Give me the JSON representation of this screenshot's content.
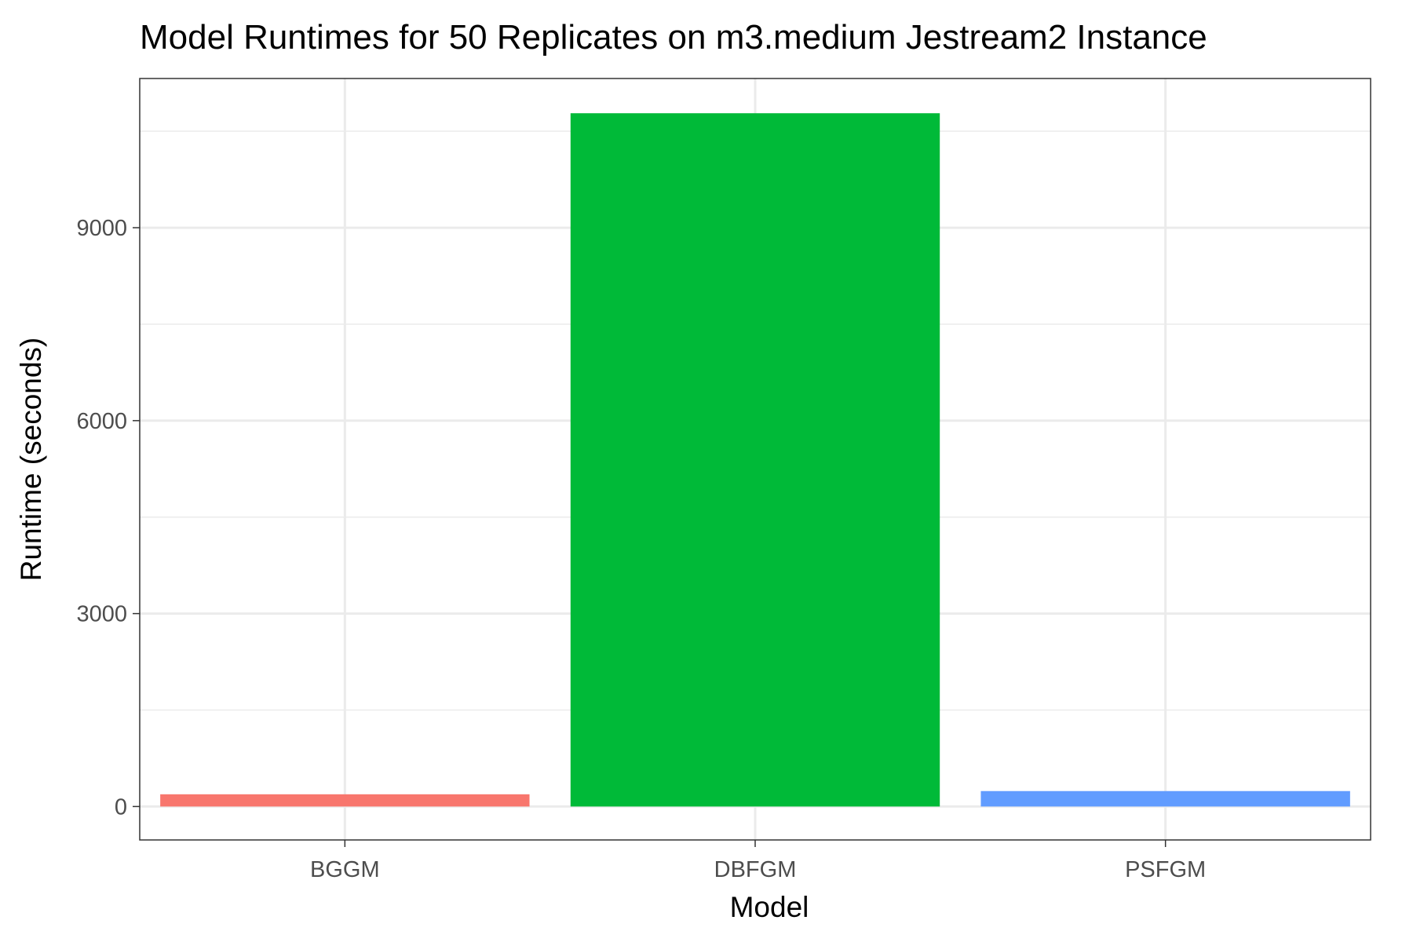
{
  "chart_data": {
    "type": "bar",
    "title": "Model Runtimes for 50 Replicates on m3.medium Jestream2 Instance",
    "xlabel": "Model",
    "ylabel": "Runtime (seconds)",
    "categories": [
      "BGGM",
      "DBFGM",
      "PSFGM"
    ],
    "values": [
      190,
      10780,
      240
    ],
    "colors": [
      "#F8766D",
      "#00BA38",
      "#619CFF"
    ],
    "ylim": [
      -520,
      11320
    ],
    "yticks": [
      0,
      3000,
      6000,
      9000
    ],
    "ytick_labels": [
      "0",
      "3000",
      "6000",
      "9000"
    ],
    "grid": true,
    "legend": "none"
  }
}
